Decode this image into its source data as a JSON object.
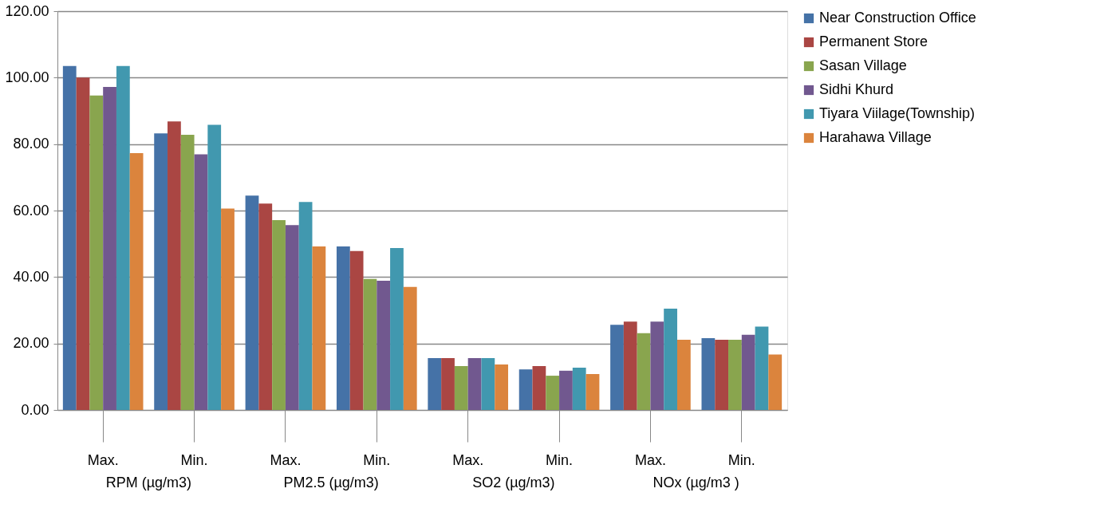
{
  "chart_data": {
    "type": "bar",
    "categories": [
      "Max.",
      "Min.",
      "Max.",
      "Min.",
      "Max.",
      "Min.",
      "Max.",
      "Min."
    ],
    "annotations": [
      "RPM  (µg/m3)",
      "PM2.5 (µg/m3)",
      "SO2 (µg/m3)",
      "NOx  (µg/m3 )"
    ],
    "series": [
      {
        "name": "Near Construction  Office",
        "color": "#4572a7",
        "values": [
          103.5,
          83.2,
          64.5,
          49.2,
          15.6,
          12.2,
          25.6,
          21.6
        ]
      },
      {
        "name": "Permanent Store",
        "color": "#aa4643",
        "values": [
          100.0,
          86.8,
          62.1,
          47.8,
          15.6,
          13.2,
          26.6,
          21.1
        ]
      },
      {
        "name": "Sasan Village",
        "color": "#89a54e",
        "values": [
          94.6,
          82.8,
          57.1,
          39.4,
          13.2,
          10.3,
          23.1,
          21.1
        ]
      },
      {
        "name": "Sidhi Khurd",
        "color": "#71588f",
        "values": [
          97.2,
          76.9,
          55.6,
          38.9,
          15.6,
          11.8,
          26.6,
          22.6
        ]
      },
      {
        "name": "Tiyara Viilage(Township)",
        "color": "#4198af",
        "values": [
          103.5,
          85.8,
          62.6,
          48.7,
          15.6,
          12.7,
          30.5,
          25.1
        ]
      },
      {
        "name": "Harahawa Village",
        "color": "#db843d",
        "values": [
          77.3,
          60.6,
          49.2,
          37.0,
          13.7,
          10.8,
          21.1,
          16.7
        ]
      }
    ],
    "ylim": [
      0,
      120
    ],
    "yticks": [
      {
        "value": 0,
        "label": "0.00"
      },
      {
        "value": 20,
        "label": "20.00"
      },
      {
        "value": 40,
        "label": "40.00"
      },
      {
        "value": 60,
        "label": "60.00"
      },
      {
        "value": 80,
        "label": "80.00"
      },
      {
        "value": 100,
        "label": "100.00"
      },
      {
        "value": 120,
        "label": "120.00"
      }
    ],
    "grid": "y",
    "legend": "right"
  }
}
